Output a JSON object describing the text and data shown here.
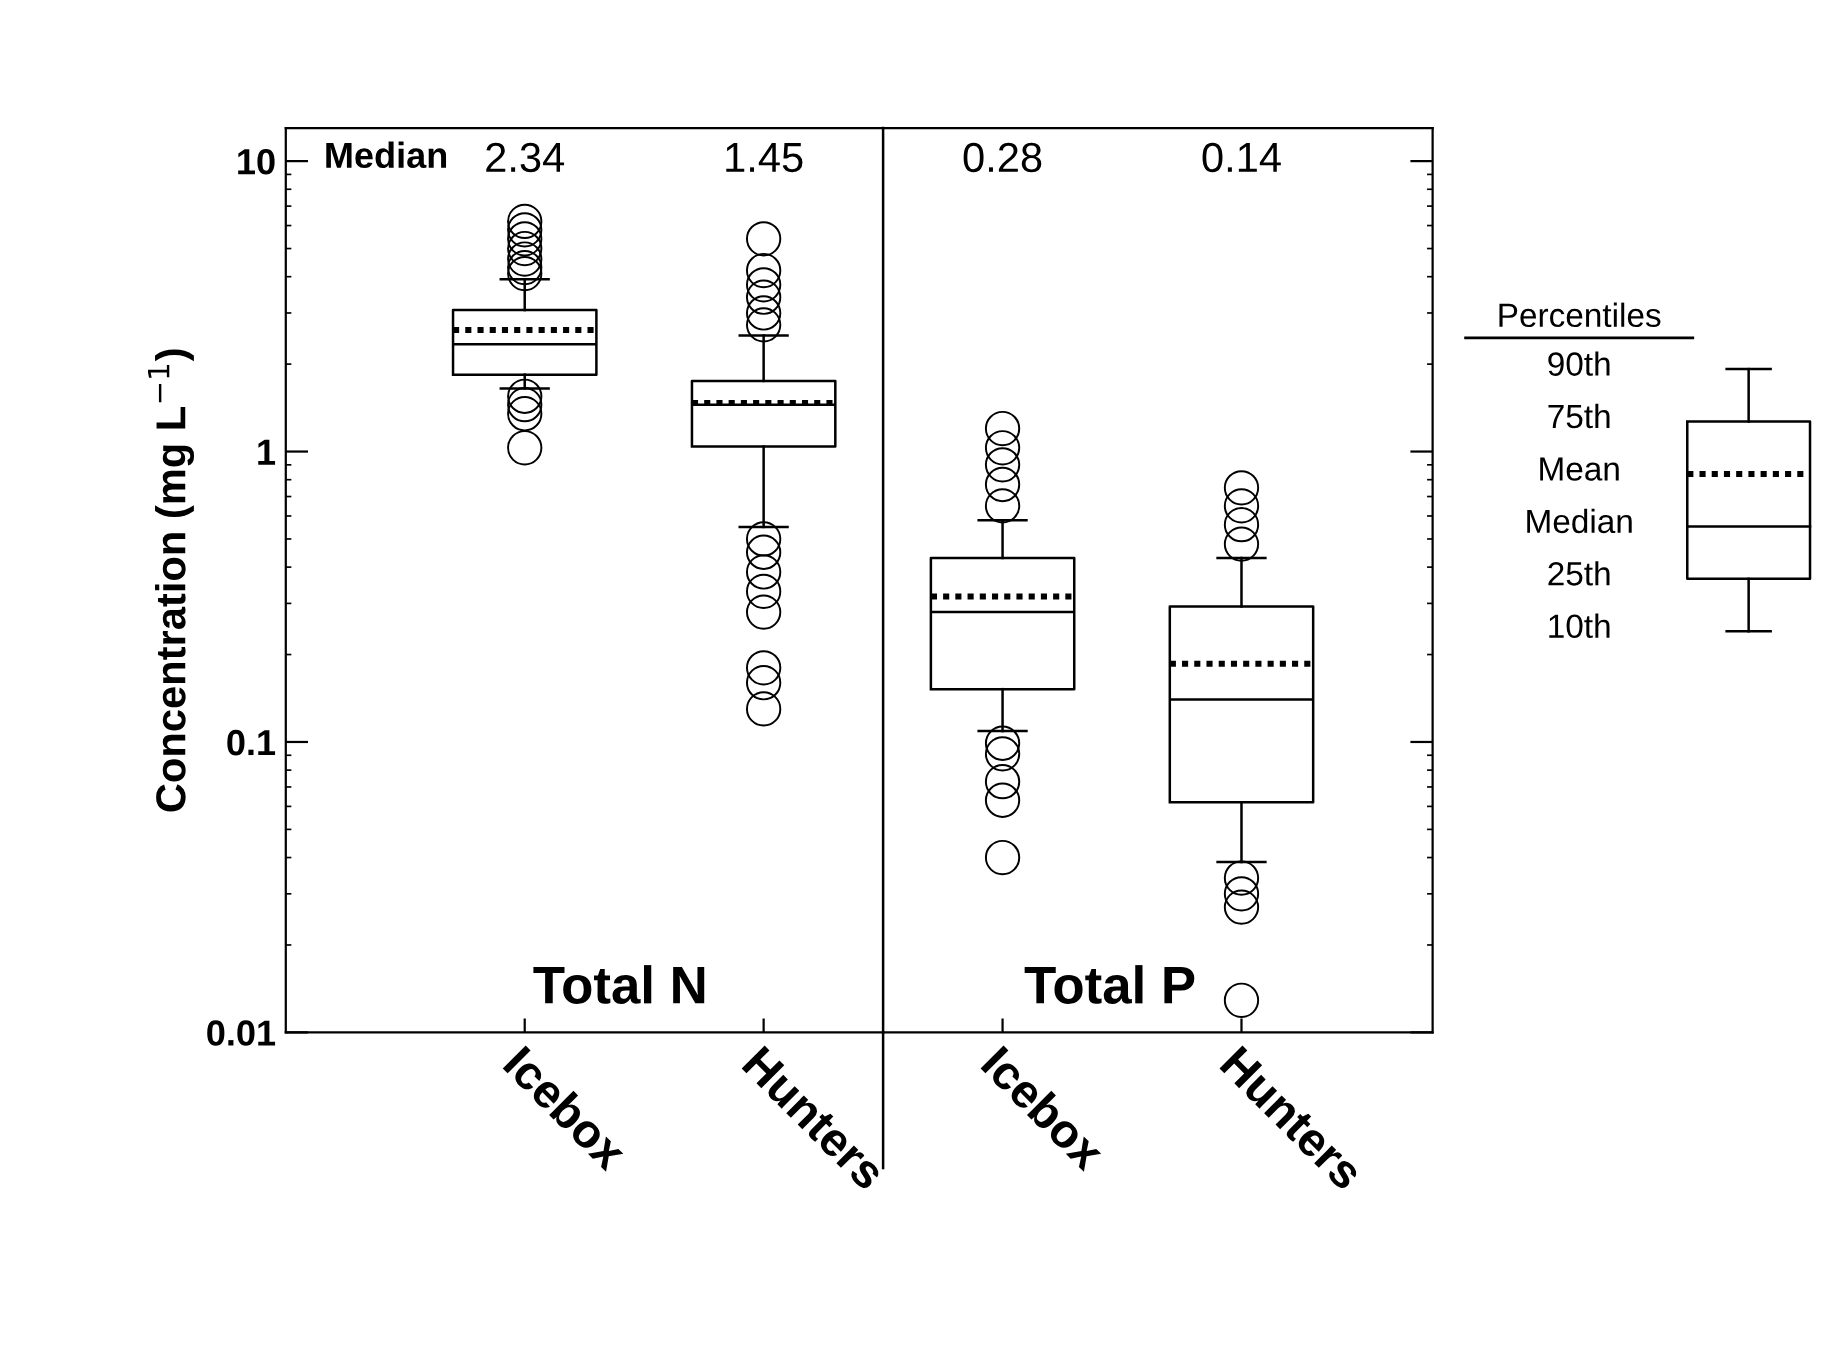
{
  "chart_data": {
    "type": "box",
    "ylabel": "Concentration (mg L$^{−1}$)",
    "legend_title": "Percentiles",
    "categories": [
      "Icebox",
      "Hunters",
      "Icebox",
      "Hunters"
    ],
    "boxes": [
      {
        "low": 1.65,
        "q1": 1.84,
        "median": 2.34,
        "q3": 3.07,
        "high": 3.92,
        "mean": 2.62,
        "outliers": [
          6.2,
          5.8,
          5.4,
          5.0,
          4.6,
          4.3,
          4.1,
          1.55,
          1.45,
          1.35,
          1.03
        ]
      },
      {
        "low": 0.55,
        "q1": 1.04,
        "median": 1.45,
        "q3": 1.75,
        "high": 2.51,
        "mean": 1.47,
        "outliers": [
          5.4,
          4.2,
          3.75,
          3.4,
          3.0,
          2.73,
          0.5,
          0.45,
          0.385,
          0.33,
          0.28,
          0.18,
          0.16,
          0.13
        ]
      },
      {
        "low": 0.109,
        "q1": 0.152,
        "median": 0.28,
        "q3": 0.43,
        "high": 0.58,
        "mean": 0.317,
        "outliers": [
          1.2,
          1.03,
          0.9,
          0.77,
          0.65,
          0.099,
          0.091,
          0.073,
          0.063,
          0.04
        ]
      },
      {
        "low": 0.0386,
        "q1": 0.062,
        "median": 0.14,
        "q3": 0.293,
        "high": 0.43,
        "mean": 0.186,
        "outliers": [
          0.75,
          0.65,
          0.56,
          0.48,
          0.034,
          0.03,
          0.027,
          0.0129
        ]
      }
    ],
    "value_labels": [
      "2.34",
      "1.45",
      "0.28",
      "0.14"
    ],
    "log": true,
    "ylim": [
      0.01,
      13
    ],
    "yticks": [
      0.01,
      0.1,
      1,
      10
    ],
    "grid": false,
    "annotations": [
      "Median",
      "Total N",
      "Total P",
      "90th",
      "75th",
      "Mean",
      "Median",
      "25th",
      "10th"
    ]
  }
}
